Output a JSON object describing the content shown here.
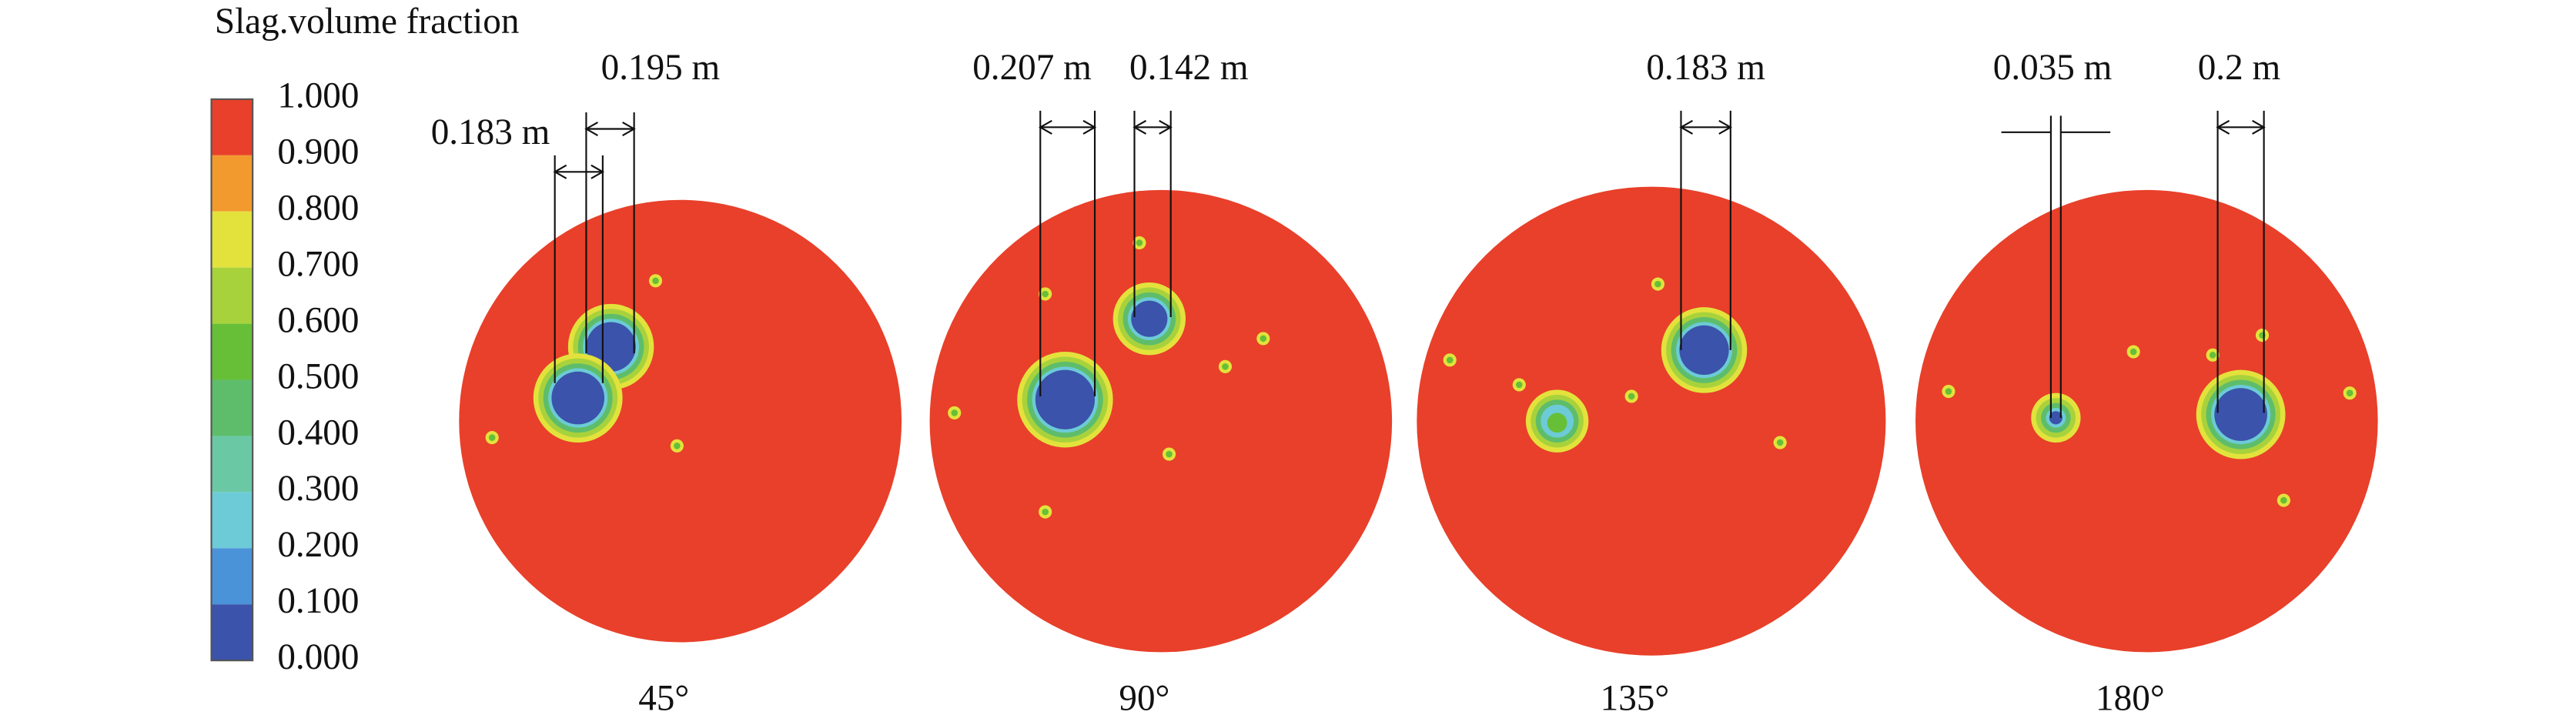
{
  "colorbar": {
    "title": "Slag.volume fraction",
    "ticks": [
      "1.000",
      "0.900",
      "0.800",
      "0.700",
      "0.600",
      "0.500",
      "0.400",
      "0.300",
      "0.200",
      "0.100",
      "0.000"
    ],
    "colors": [
      "#e8402a",
      "#f29a2e",
      "#e3e23c",
      "#a8d23c",
      "#66bf37",
      "#5ebd6b",
      "#6bc8a4",
      "#6ccbd6",
      "#4a93d8",
      "#3b53ab"
    ]
  },
  "panels": [
    {
      "label": "45°",
      "measurements": [
        "0.183 m",
        "0.195 m"
      ]
    },
    {
      "label": "90°",
      "measurements": [
        "0.207 m",
        "0.142 m"
      ]
    },
    {
      "label": "135°",
      "measurements": [
        "0.183 m"
      ]
    },
    {
      "label": "180°",
      "measurements": [
        "0.035 m",
        "0.2 m"
      ]
    }
  ]
}
